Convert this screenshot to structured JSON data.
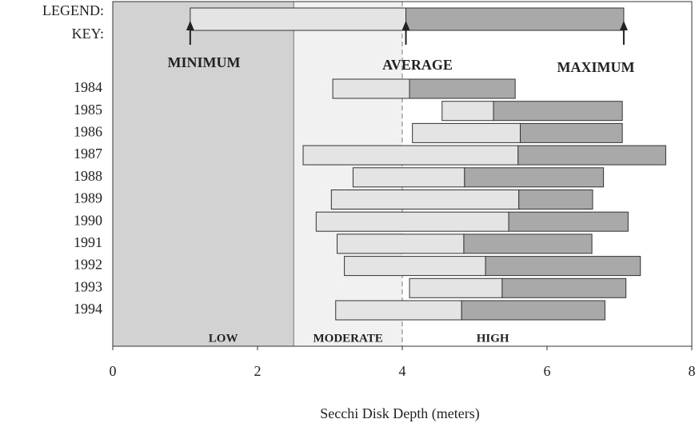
{
  "chart_data": {
    "type": "floating-bar",
    "categories": [
      "1984",
      "1985",
      "1986",
      "1987",
      "1988",
      "1989",
      "1990",
      "1991",
      "1992",
      "1993",
      "1994"
    ],
    "series": [
      {
        "name": "MINIMUM",
        "color": "#e4e4e4",
        "values": [
          3.04,
          4.55,
          4.14,
          2.63,
          3.32,
          3.02,
          2.81,
          3.1,
          3.2,
          4.1,
          3.08
        ]
      },
      {
        "name": "AVERAGE",
        "color": "#e4e4e4",
        "values": [
          4.1,
          5.26,
          5.63,
          5.6,
          4.86,
          5.61,
          5.47,
          4.85,
          5.15,
          5.38,
          4.82
        ]
      },
      {
        "name": "MAXIMUM",
        "color": "#a9a9a9",
        "values": [
          5.56,
          7.04,
          7.04,
          7.64,
          6.78,
          6.63,
          7.12,
          6.62,
          7.29,
          7.09,
          6.8
        ]
      }
    ],
    "legend_title": "LEGEND:",
    "legend_key_label": "KEY:",
    "legend_key": {
      "minimum": 1.07,
      "average": 4.05,
      "maximum": 7.06
    },
    "zones": [
      {
        "label": "LOW",
        "start": 0,
        "end": 2.5,
        "color": "#d2d2d2"
      },
      {
        "label": "MODERATE",
        "start": 2.5,
        "end": 4,
        "color": "#f1f1f1"
      },
      {
        "label": "HIGH",
        "start": 4,
        "end": 8,
        "color": "#ffffff"
      }
    ],
    "xlabel": "Secchi Disk Depth (meters)",
    "xlim": [
      0,
      8
    ],
    "xticks": [
      0,
      2,
      4,
      6,
      8
    ]
  }
}
